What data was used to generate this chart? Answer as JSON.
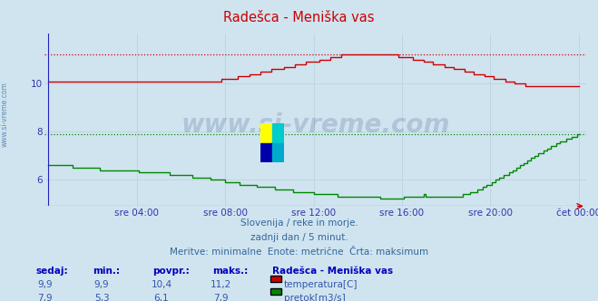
{
  "title": "Radešca - Meniška vas",
  "bg_color": "#d0e4f0",
  "plot_bg_color": "#d0e4f0",
  "grid_color": "#b8cfe0",
  "axis_color": "#4444cc",
  "text_color": "#3333aa",
  "subtitle_lines": [
    "Slovenija / reke in morje.",
    "zadnji dan / 5 minut.",
    "Meritve: minimalne  Enote: metrične  Črta: maksimum"
  ],
  "xlabel_ticks": [
    "sre 04:00",
    "sre 08:00",
    "sre 12:00",
    "sre 16:00",
    "sre 20:00",
    "čet 00:00"
  ],
  "ylabel_ticks": [
    6,
    8,
    10
  ],
  "ylim_min": 4.9,
  "ylim_max": 12.1,
  "xlim_min": 0,
  "xlim_max": 288,
  "temp_max_line": 11.2,
  "flow_max_line": 7.9,
  "temp_color": "#cc0000",
  "flow_color": "#008800",
  "watermark": "www.si-vreme.com",
  "table_headers": [
    "sedaj:",
    "min.:",
    "povpr.:",
    "maks.:"
  ],
  "table_row1": [
    "9,9",
    "9,9",
    "10,4",
    "11,2"
  ],
  "table_row2": [
    "7,9",
    "5,3",
    "6,1",
    "7,9"
  ],
  "legend_title": "Radešca - Meniška vas",
  "legend_items": [
    "temperatura[C]",
    "pretok[m3/s]"
  ],
  "legend_colors": [
    "#cc0000",
    "#008800"
  ],
  "tick_positions": [
    48,
    96,
    144,
    192,
    240,
    288
  ]
}
